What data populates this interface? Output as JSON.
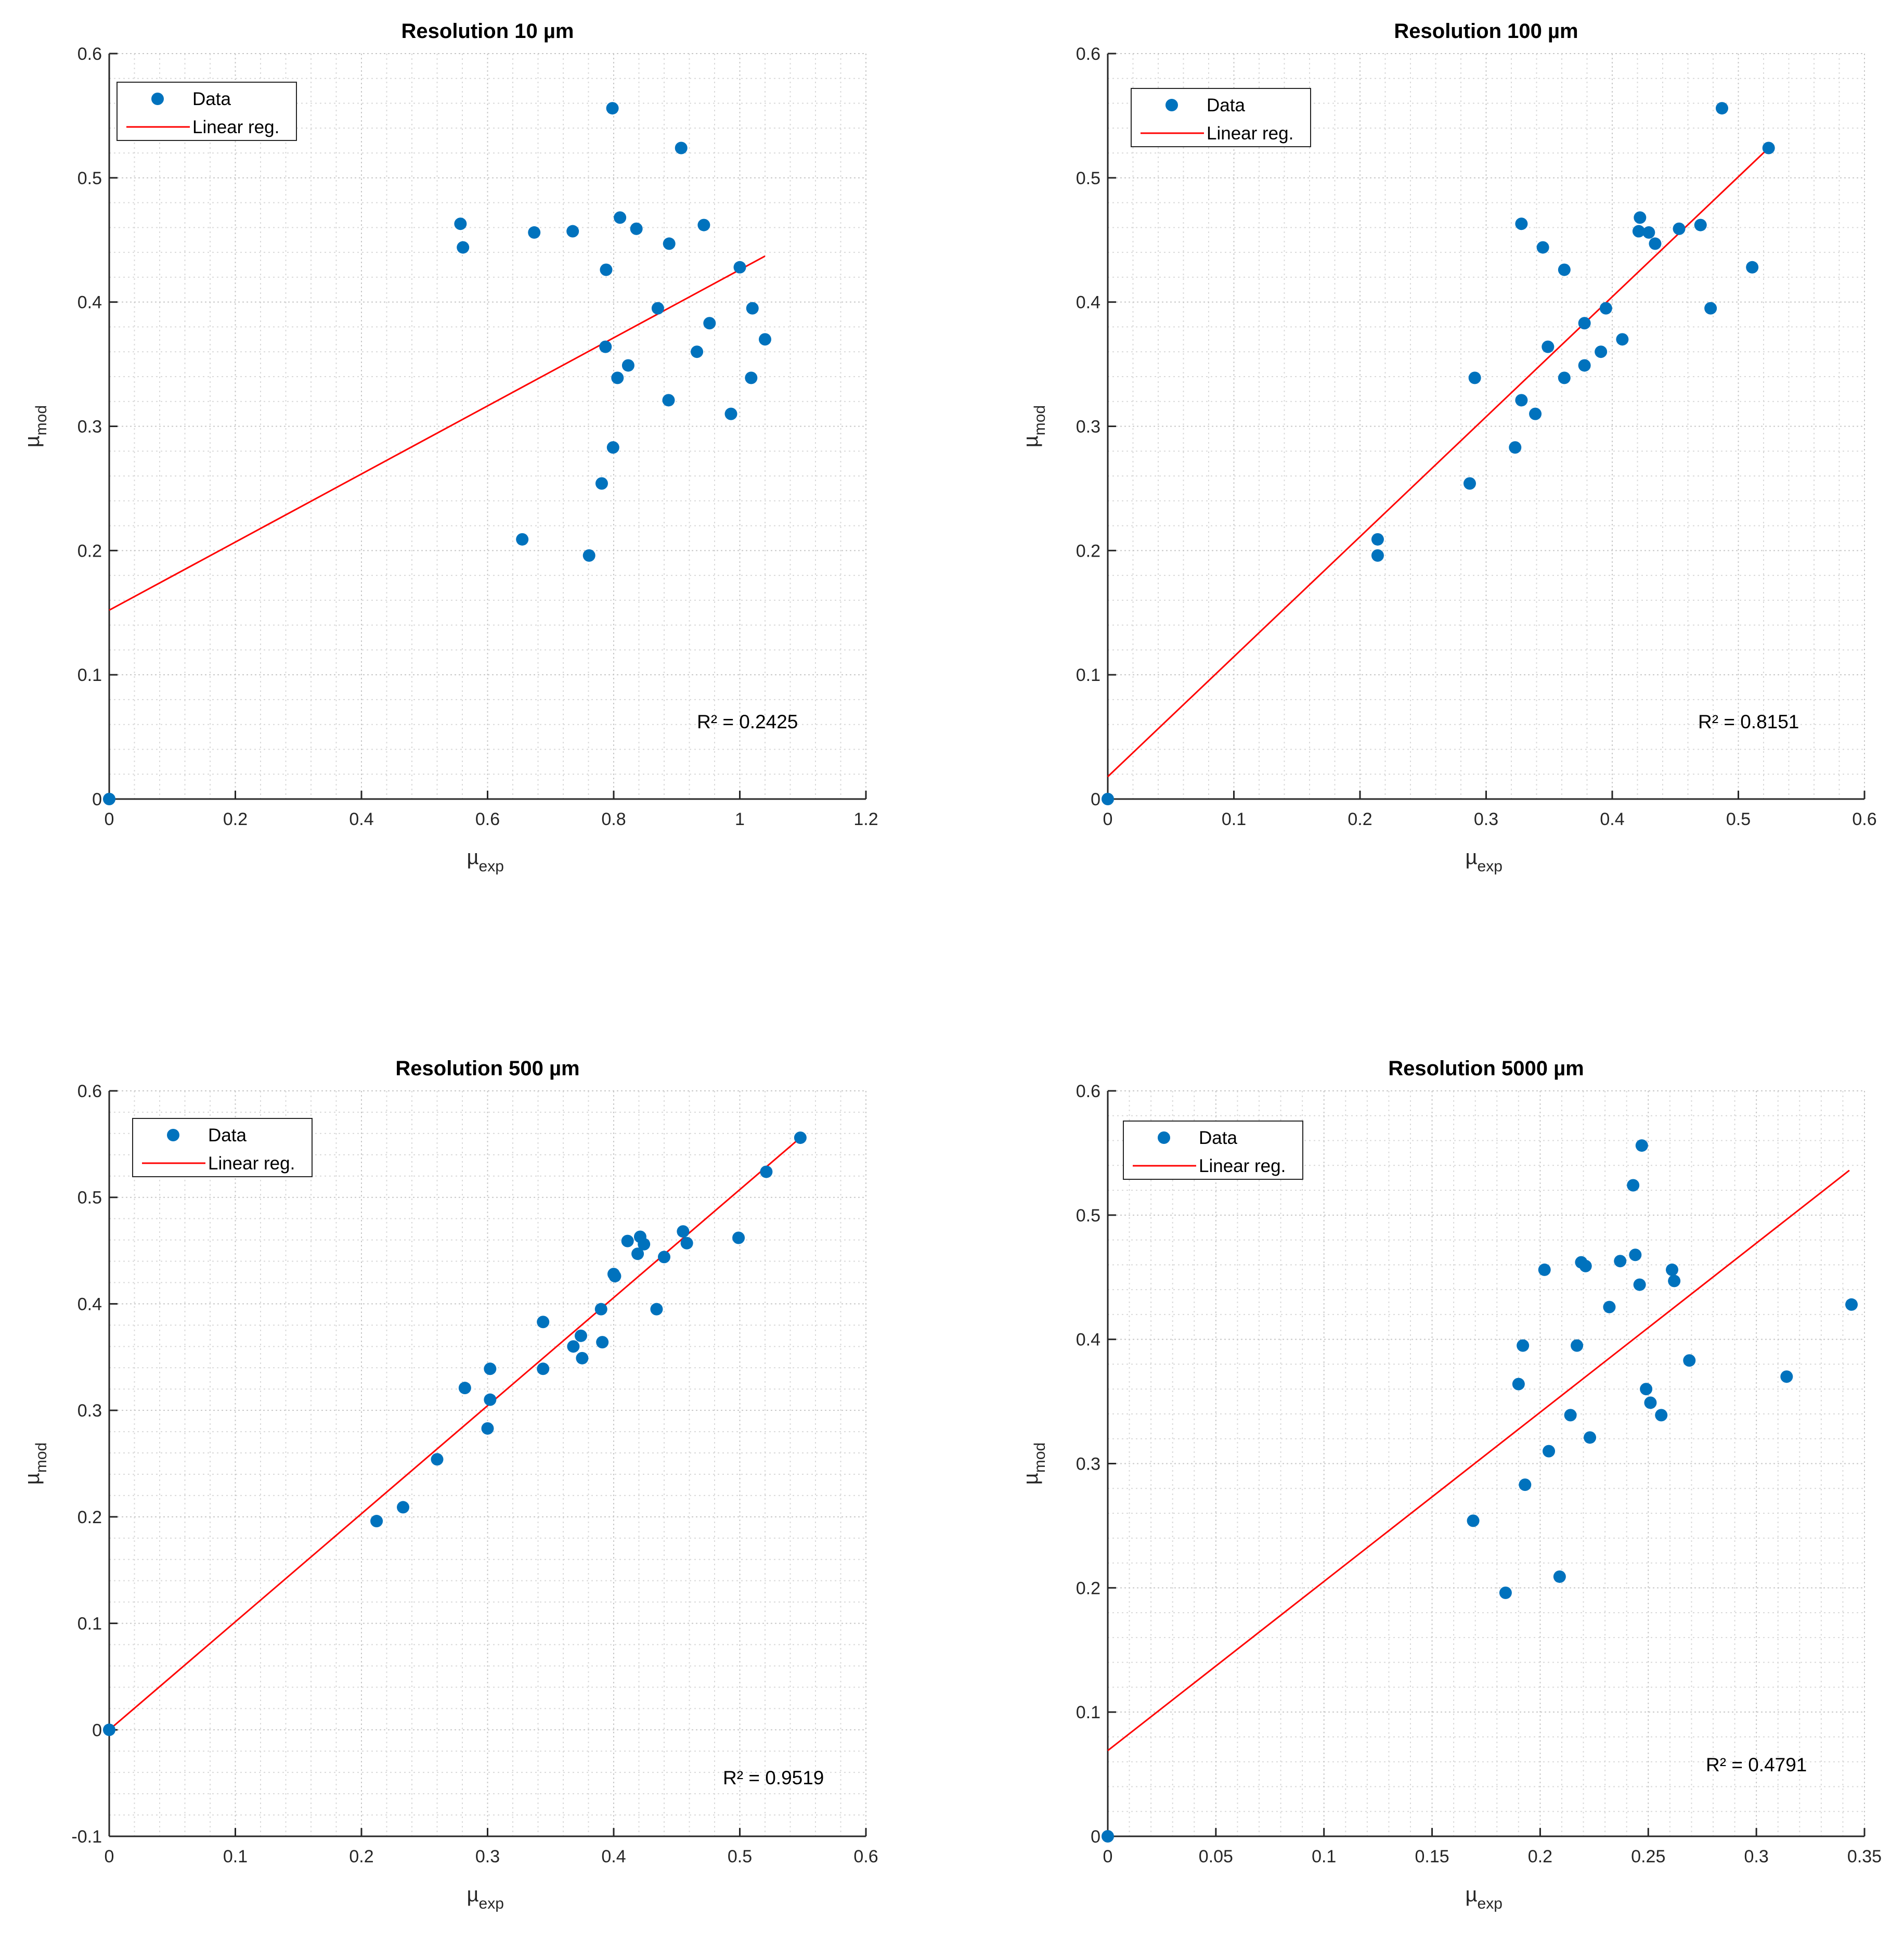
{
  "chart_data": [
    {
      "type": "scatter",
      "title": "Resolution 10 µm",
      "xlabel": "µexp",
      "xlabel_main": "µ",
      "xlabel_sub": "exp",
      "ylabel": "µmod",
      "ylabel_main": "µ",
      "ylabel_sub": "mod",
      "xlim": [
        0,
        1.2
      ],
      "ylim": [
        0,
        0.6
      ],
      "xticks": [
        0,
        0.2,
        0.4,
        0.6,
        0.8,
        1,
        1.2
      ],
      "yticks": [
        0,
        0.1,
        0.2,
        0.3,
        0.4,
        0.5,
        0.6
      ],
      "grid": true,
      "minor_grid": true,
      "legend_placement": "top-left",
      "legend": [
        "Data",
        "Linear reg."
      ],
      "annotation": "R² = 0.2425",
      "colors": {
        "data": "#0072BD",
        "line": "#FF0000"
      },
      "regression": {
        "x": [
          0,
          1.04
        ],
        "y": [
          0.152,
          0.437
        ]
      },
      "points": [
        [
          0,
          0
        ],
        [
          0.557,
          0.463
        ],
        [
          0.561,
          0.444
        ],
        [
          0.674,
          0.456
        ],
        [
          0.735,
          0.457
        ],
        [
          0.798,
          0.556
        ],
        [
          0.907,
          0.524
        ],
        [
          0.81,
          0.468
        ],
        [
          0.836,
          0.459
        ],
        [
          0.888,
          0.447
        ],
        [
          0.943,
          0.462
        ],
        [
          0.788,
          0.426
        ],
        [
          1.0,
          0.428
        ],
        [
          0.87,
          0.395
        ],
        [
          1.02,
          0.395
        ],
        [
          0.952,
          0.383
        ],
        [
          0.787,
          0.364
        ],
        [
          0.932,
          0.36
        ],
        [
          0.823,
          0.349
        ],
        [
          1.04,
          0.37
        ],
        [
          0.806,
          0.339
        ],
        [
          1.018,
          0.339
        ],
        [
          0.887,
          0.321
        ],
        [
          0.986,
          0.31
        ],
        [
          0.799,
          0.283
        ],
        [
          0.781,
          0.254
        ],
        [
          0.655,
          0.209
        ],
        [
          0.761,
          0.196
        ]
      ]
    },
    {
      "type": "scatter",
      "title": "Resolution 100 µm",
      "xlabel": "µexp",
      "xlabel_main": "µ",
      "xlabel_sub": "exp",
      "ylabel": "µmod",
      "ylabel_main": "µ",
      "ylabel_sub": "mod",
      "xlim": [
        0,
        0.6
      ],
      "ylim": [
        0,
        0.6
      ],
      "xticks": [
        0,
        0.1,
        0.2,
        0.3,
        0.4,
        0.5,
        0.6
      ],
      "yticks": [
        0,
        0.1,
        0.2,
        0.3,
        0.4,
        0.5,
        0.6
      ],
      "grid": true,
      "minor_grid": true,
      "legend_placement": "top-left",
      "legend": [
        "Data",
        "Linear reg."
      ],
      "annotation": "R² = 0.8151",
      "colors": {
        "data": "#0072BD",
        "line": "#FF0000"
      },
      "regression": {
        "x": [
          0,
          0.524
        ],
        "y": [
          0.018,
          0.524
        ]
      },
      "points": [
        [
          0,
          0
        ],
        [
          0.214,
          0.209
        ],
        [
          0.214,
          0.196
        ],
        [
          0.287,
          0.254
        ],
        [
          0.291,
          0.339
        ],
        [
          0.323,
          0.283
        ],
        [
          0.328,
          0.321
        ],
        [
          0.339,
          0.31
        ],
        [
          0.328,
          0.463
        ],
        [
          0.345,
          0.444
        ],
        [
          0.349,
          0.364
        ],
        [
          0.362,
          0.339
        ],
        [
          0.362,
          0.426
        ],
        [
          0.378,
          0.383
        ],
        [
          0.378,
          0.349
        ],
        [
          0.391,
          0.36
        ],
        [
          0.395,
          0.395
        ],
        [
          0.408,
          0.37
        ],
        [
          0.421,
          0.457
        ],
        [
          0.422,
          0.468
        ],
        [
          0.429,
          0.456
        ],
        [
          0.434,
          0.447
        ],
        [
          0.453,
          0.459
        ],
        [
          0.47,
          0.462
        ],
        [
          0.478,
          0.395
        ],
        [
          0.487,
          0.556
        ],
        [
          0.511,
          0.428
        ],
        [
          0.524,
          0.524
        ]
      ]
    },
    {
      "type": "scatter",
      "title": "Resolution 500 µm",
      "xlabel": "µexp",
      "xlabel_main": "µ",
      "xlabel_sub": "exp",
      "ylabel": "µmod",
      "ylabel_main": "µ",
      "ylabel_sub": "mod",
      "xlim": [
        0,
        0.6
      ],
      "ylim": [
        -0.1,
        0.6
      ],
      "xticks": [
        0,
        0.1,
        0.2,
        0.3,
        0.4,
        0.5,
        0.6
      ],
      "yticks": [
        -0.1,
        0,
        0.1,
        0.2,
        0.3,
        0.4,
        0.5,
        0.6
      ],
      "grid": true,
      "minor_grid": true,
      "legend_placement": "top-left",
      "legend": [
        "Data",
        "Linear reg."
      ],
      "annotation": "R² = 0.9519",
      "colors": {
        "data": "#0072BD",
        "line": "#FF0000"
      },
      "regression": {
        "x": [
          0,
          0.548
        ],
        "y": [
          0.0,
          0.556
        ]
      },
      "points": [
        [
          0,
          0
        ],
        [
          0.212,
          0.196
        ],
        [
          0.233,
          0.209
        ],
        [
          0.26,
          0.254
        ],
        [
          0.282,
          0.321
        ],
        [
          0.3,
          0.283
        ],
        [
          0.302,
          0.339
        ],
        [
          0.302,
          0.31
        ],
        [
          0.344,
          0.383
        ],
        [
          0.344,
          0.339
        ],
        [
          0.368,
          0.36
        ],
        [
          0.374,
          0.37
        ],
        [
          0.375,
          0.349
        ],
        [
          0.39,
          0.395
        ],
        [
          0.391,
          0.364
        ],
        [
          0.4,
          0.428
        ],
        [
          0.401,
          0.426
        ],
        [
          0.411,
          0.459
        ],
        [
          0.419,
          0.447
        ],
        [
          0.421,
          0.463
        ],
        [
          0.424,
          0.456
        ],
        [
          0.434,
          0.395
        ],
        [
          0.44,
          0.444
        ],
        [
          0.455,
          0.468
        ],
        [
          0.458,
          0.457
        ],
        [
          0.499,
          0.462
        ],
        [
          0.521,
          0.524
        ],
        [
          0.548,
          0.556
        ]
      ]
    },
    {
      "type": "scatter",
      "title": "Resolution 5000 µm",
      "xlabel": "µexp",
      "xlabel_main": "µ",
      "xlabel_sub": "exp",
      "ylabel": "µmod",
      "ylabel_main": "µ",
      "ylabel_sub": "mod",
      "xlim": [
        0,
        0.35
      ],
      "ylim": [
        0,
        0.6
      ],
      "xticks": [
        0,
        0.05,
        0.1,
        0.15,
        0.2,
        0.25,
        0.3,
        0.35
      ],
      "yticks": [
        0,
        0.1,
        0.2,
        0.3,
        0.4,
        0.5,
        0.6
      ],
      "grid": true,
      "minor_grid": true,
      "legend_placement": "top-left",
      "legend": [
        "Data",
        "Linear reg."
      ],
      "annotation": "R² = 0.4791",
      "colors": {
        "data": "#0072BD",
        "line": "#FF0000"
      },
      "regression": {
        "x": [
          0,
          0.343
        ],
        "y": [
          0.069,
          0.536
        ]
      },
      "points": [
        [
          0,
          0
        ],
        [
          0.169,
          0.254
        ],
        [
          0.19,
          0.364
        ],
        [
          0.192,
          0.395
        ],
        [
          0.193,
          0.283
        ],
        [
          0.184,
          0.196
        ],
        [
          0.202,
          0.456
        ],
        [
          0.204,
          0.31
        ],
        [
          0.209,
          0.209
        ],
        [
          0.214,
          0.339
        ],
        [
          0.217,
          0.395
        ],
        [
          0.219,
          0.462
        ],
        [
          0.221,
          0.459
        ],
        [
          0.223,
          0.321
        ],
        [
          0.232,
          0.426
        ],
        [
          0.237,
          0.463
        ],
        [
          0.243,
          0.524
        ],
        [
          0.244,
          0.468
        ],
        [
          0.246,
          0.444
        ],
        [
          0.247,
          0.556
        ],
        [
          0.249,
          0.36
        ],
        [
          0.251,
          0.349
        ],
        [
          0.256,
          0.339
        ],
        [
          0.261,
          0.456
        ],
        [
          0.262,
          0.447
        ],
        [
          0.269,
          0.383
        ],
        [
          0.314,
          0.37
        ],
        [
          0.344,
          0.428
        ]
      ]
    }
  ]
}
